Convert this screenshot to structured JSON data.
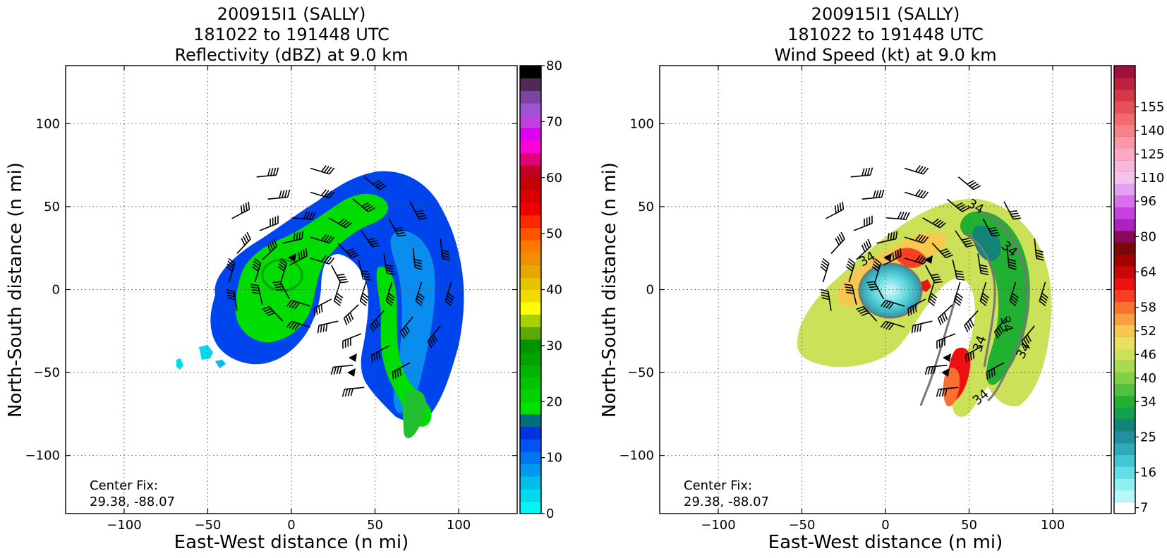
{
  "panels": [
    {
      "title_lines": [
        "200915I1 (SALLY)",
        "181022 to 191448 UTC",
        "Reflectivity (dBZ) at 9.0 km"
      ],
      "xlabel": "East-West distance (n mi)",
      "ylabel": "North-South distance (n mi)",
      "center_fix_label": "Center Fix:",
      "center_fix_value": "29.38, -88.07",
      "colorbar": {
        "ticks": [
          "0",
          "10",
          "20",
          "30",
          "40",
          "50",
          "60",
          "70",
          "80"
        ],
        "colors": [
          "#00f5f5",
          "#00d9ee",
          "#00bdea",
          "#0099ee",
          "#0077f0",
          "#0055f2",
          "#0033e0",
          "#006e80",
          "#00e000",
          "#00d200",
          "#00c400",
          "#00b400",
          "#00a400",
          "#009200",
          "#5aaa00",
          "#a8d000",
          "#ffff00",
          "#f0dc00",
          "#e6c300",
          "#e6a800",
          "#f09000",
          "#ff7800",
          "#ff5500",
          "#ff2a00",
          "#f00000",
          "#d80000",
          "#c40000",
          "#c00020",
          "#e0007a",
          "#ff00d8",
          "#e000f0",
          "#c040e0",
          "#9d55d4",
          "#7a44a0",
          "#4e2a55",
          "#000000"
        ]
      }
    },
    {
      "title_lines": [
        "200915I1 (SALLY)",
        "181022 to 191448 UTC",
        "Wind Speed (kt) at 9.0 km"
      ],
      "xlabel": "East-West distance (n mi)",
      "ylabel": "North-South distance (n mi)",
      "center_fix_label": "Center Fix:",
      "center_fix_value": "29.38, -88.07",
      "colorbar": {
        "ticks": [
          "7",
          "16",
          "25",
          "34",
          "40",
          "46",
          "52",
          "58",
          "64",
          "80",
          "96",
          "110",
          "125",
          "140",
          "155"
        ],
        "colors": [
          "#ffffff",
          "#b4fafa",
          "#8ef0f0",
          "#60e0e6",
          "#40c8d2",
          "#30aab8",
          "#22909e",
          "#128478",
          "#10a050",
          "#22b032",
          "#52c040",
          "#80d048",
          "#a8dc50",
          "#cce058",
          "#eae060",
          "#f6c850",
          "#f8a040",
          "#fa7030",
          "#f84020",
          "#ee1010",
          "#c80808",
          "#a40000",
          "#7a0808",
          "#8a0a5a",
          "#b020c0",
          "#c840e0",
          "#d870ec",
          "#e4a0f0",
          "#f0c4ec",
          "#f8b8dc",
          "#faa8c4",
          "#fa96a8",
          "#f88088",
          "#f46a70",
          "#e85058",
          "#d63848",
          "#be2040",
          "#a01038"
        ]
      },
      "contour_label": "34"
    }
  ],
  "chart_data": [
    {
      "type": "heatmap",
      "title": "200915I1 (SALLY) 181022 to 191448 UTC Reflectivity (dBZ) at 9.0 km",
      "xlabel": "East-West distance (n mi)",
      "ylabel": "North-South distance (n mi)",
      "xlim": [
        -135,
        135
      ],
      "ylim": [
        -135,
        135
      ],
      "xticks": [
        -100,
        -50,
        0,
        50,
        100
      ],
      "yticks": [
        -100,
        -50,
        0,
        50,
        100
      ],
      "grid": true,
      "colorbar_range": [
        0,
        80
      ],
      "colorbar_ticks": [
        0,
        10,
        20,
        30,
        40,
        50,
        60,
        70,
        80
      ],
      "center_fix": [
        29.38,
        -88.07
      ],
      "overlay": "wind barbs"
    },
    {
      "type": "heatmap",
      "title": "200915I1 (SALLY) 181022 to 191448 UTC Wind Speed (kt) at 9.0 km",
      "xlabel": "East-West distance (n mi)",
      "ylabel": "North-South distance (n mi)",
      "xlim": [
        -135,
        135
      ],
      "ylim": [
        -135,
        135
      ],
      "xticks": [
        -100,
        -50,
        0,
        50,
        100
      ],
      "yticks": [
        -100,
        -50,
        0,
        50,
        100
      ],
      "grid": true,
      "colorbar_ticks": [
        7,
        16,
        25,
        34,
        40,
        46,
        52,
        58,
        64,
        80,
        96,
        110,
        125,
        140,
        155
      ],
      "center_fix": [
        29.38,
        -88.07
      ],
      "overlay": "wind barbs, 34 kt contour"
    }
  ]
}
